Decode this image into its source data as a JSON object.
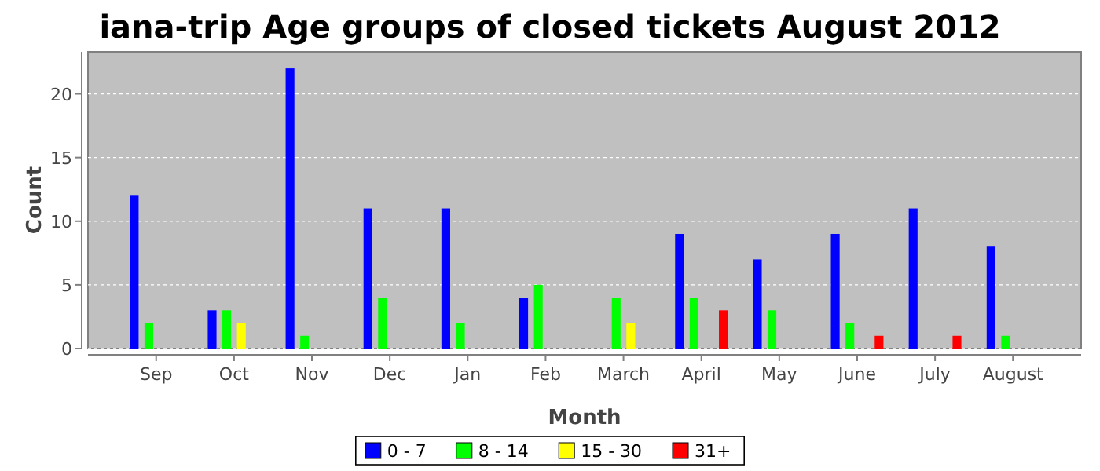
{
  "chart_data": {
    "type": "bar",
    "title": "iana-trip Age groups of closed tickets August 2012",
    "xlabel": "Month",
    "ylabel": "Count",
    "categories": [
      "Sep",
      "Oct",
      "Nov",
      "Dec",
      "Jan",
      "Feb",
      "March",
      "April",
      "May",
      "June",
      "July",
      "August"
    ],
    "series": [
      {
        "name": "0 - 7",
        "color": "#0000ff",
        "values": [
          12,
          3,
          22,
          11,
          11,
          4,
          0,
          9,
          7,
          9,
          11,
          8
        ]
      },
      {
        "name": "8 - 14",
        "color": "#00ff00",
        "values": [
          2,
          3,
          1,
          4,
          2,
          5,
          4,
          4,
          3,
          2,
          0,
          1
        ]
      },
      {
        "name": "15 - 30",
        "color": "#ffff00",
        "values": [
          0,
          2,
          0,
          0,
          0,
          0,
          2,
          0,
          0,
          0,
          0,
          0
        ]
      },
      {
        "name": "31+",
        "color": "#ff0000",
        "values": [
          0,
          0,
          0,
          0,
          0,
          0,
          0,
          3,
          0,
          1,
          1,
          0
        ]
      }
    ],
    "ylim": [
      0,
      23.3
    ],
    "yticks": [
      0,
      5,
      10,
      15,
      20
    ],
    "grid": "y",
    "legend": "bottom"
  }
}
